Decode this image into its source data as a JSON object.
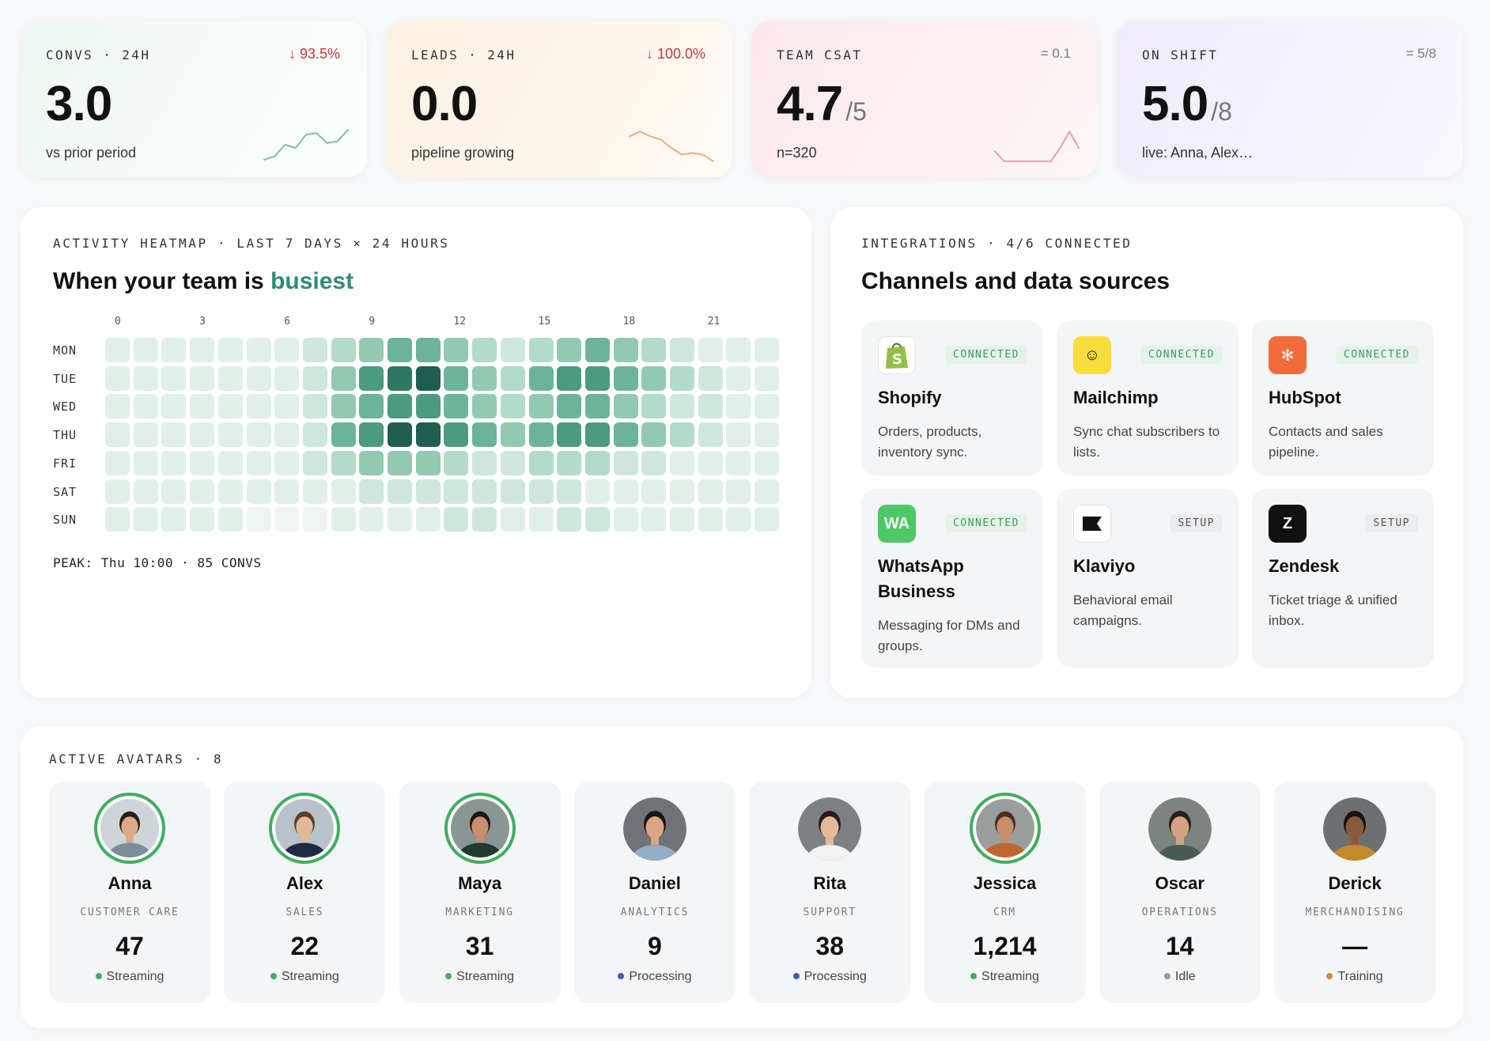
{
  "kpis": [
    {
      "label": "CONVS · 24H",
      "delta": "↓ 93.5%",
      "value": "3.0",
      "of": "",
      "sub": "vs prior period",
      "spark_color": "#7fbfa2",
      "spark": [
        0.1,
        0.2,
        0.55,
        0.45,
        0.85,
        0.9,
        0.6,
        0.65,
        1.0
      ]
    },
    {
      "label": "LEADS · 24H",
      "delta": "↓ 100.0%",
      "value": "0.0",
      "of": "",
      "sub": "pipeline growing",
      "spark_color": "#e6b07a",
      "spark": [
        0.8,
        0.95,
        0.8,
        0.7,
        0.45,
        0.25,
        0.3,
        0.25,
        0.05
      ]
    },
    {
      "label": "TEAM CSAT",
      "delta": "= 0.1",
      "value": "4.7",
      "of": "/5",
      "sub": "n=320",
      "spark_color": "#e8a0ad",
      "spark": [
        0.35,
        0.05,
        0.05,
        0.05,
        0.05,
        0.05,
        0.05,
        0.45,
        0.95,
        0.45
      ]
    },
    {
      "label": "ON SHIFT",
      "delta": "= 5/8",
      "value": "5.0",
      "of": "/8",
      "sub": "live: Anna, Alex…",
      "spark_color": "",
      "spark": []
    }
  ],
  "heatmap": {
    "eyebrow": "ACTIVITY HEATMAP · LAST 7 DAYS × 24 HOURS",
    "title_lead": "When your team is ",
    "title_accent": "busiest",
    "hour_labels": [
      "0",
      "3",
      "6",
      "9",
      "12",
      "15",
      "18",
      "21"
    ],
    "days": [
      "MON",
      "TUE",
      "WED",
      "THU",
      "FRI",
      "SAT",
      "SUN"
    ],
    "scale_colors": [
      "#eef5f2",
      "#e1efe9",
      "#cde7dc",
      "#b2dbc9",
      "#91c9b1",
      "#6bb49a",
      "#4b9b81",
      "#2f7765",
      "#1f5e50"
    ],
    "matrix": [
      [
        1,
        1,
        1,
        1,
        1,
        1,
        1,
        2,
        3,
        4,
        5,
        5,
        4,
        3,
        2,
        3,
        4,
        5,
        4,
        3,
        2,
        1,
        1,
        1
      ],
      [
        1,
        1,
        1,
        1,
        1,
        1,
        1,
        2,
        4,
        6,
        7,
        8,
        5,
        4,
        3,
        5,
        6,
        6,
        5,
        4,
        3,
        2,
        1,
        1
      ],
      [
        1,
        1,
        1,
        1,
        1,
        1,
        1,
        2,
        4,
        5,
        6,
        6,
        5,
        4,
        3,
        4,
        5,
        5,
        4,
        3,
        2,
        2,
        1,
        1
      ],
      [
        1,
        1,
        1,
        1,
        1,
        1,
        1,
        2,
        5,
        6,
        8,
        8,
        6,
        5,
        4,
        5,
        6,
        6,
        5,
        4,
        3,
        2,
        1,
        1
      ],
      [
        1,
        1,
        1,
        1,
        1,
        1,
        1,
        2,
        3,
        4,
        4,
        4,
        3,
        2,
        2,
        3,
        3,
        3,
        2,
        2,
        1,
        1,
        1,
        1
      ],
      [
        1,
        1,
        1,
        1,
        1,
        1,
        1,
        1,
        1,
        2,
        2,
        2,
        2,
        2,
        2,
        2,
        2,
        1,
        1,
        1,
        1,
        1,
        1,
        1
      ],
      [
        1,
        1,
        1,
        1,
        1,
        0,
        0,
        0,
        1,
        1,
        1,
        1,
        2,
        2,
        1,
        1,
        2,
        2,
        1,
        1,
        1,
        1,
        1,
        1
      ]
    ],
    "peak": "PEAK: Thu 10:00 · 85 CONVS"
  },
  "integrations": {
    "eyebrow": "INTEGRATIONS · 4/6 CONNECTED",
    "title": "Channels and data sources",
    "items": [
      {
        "name": "Shopify",
        "status": "CONNECTED",
        "state": "connected",
        "desc": "Orders, products, inventory sync.",
        "logo_text": "S",
        "logo_bg": "#ffffff",
        "logo_fg": "#5e9e3c",
        "icon": "shopify-bag-icon"
      },
      {
        "name": "Mailchimp",
        "status": "CONNECTED",
        "state": "connected",
        "desc": "Sync chat subscribers to lists.",
        "logo_text": "☺",
        "logo_bg": "#f7dc3e",
        "logo_fg": "#111111",
        "icon": "mailchimp-icon"
      },
      {
        "name": "HubSpot",
        "status": "CONNECTED",
        "state": "connected",
        "desc": "Contacts and sales pipeline.",
        "logo_text": "✻",
        "logo_bg": "#f26b3a",
        "logo_fg": "#ffffff",
        "icon": "hubspot-icon"
      },
      {
        "name": "WhatsApp Business",
        "status": "CONNECTED",
        "state": "connected",
        "desc": "Messaging for DMs and groups.",
        "logo_text": "WA",
        "logo_bg": "#4cc864",
        "logo_fg": "#ffffff",
        "icon": "whatsapp-icon"
      },
      {
        "name": "Klaviyo",
        "status": "SETUP",
        "state": "setup",
        "desc": "Behavioral email campaigns.",
        "logo_text": "",
        "logo_bg": "#ffffff",
        "logo_fg": "#111111",
        "icon": "klaviyo-flag-icon"
      },
      {
        "name": "Zendesk",
        "status": "SETUP",
        "state": "setup",
        "desc": "Ticket triage & unified inbox.",
        "logo_text": "Z",
        "logo_bg": "#111111",
        "logo_fg": "#ffffff",
        "icon": "zendesk-icon"
      }
    ]
  },
  "avatars": {
    "eyebrow": "ACTIVE AVATARS · 8",
    "people": [
      {
        "name": "Anna",
        "role": "CUSTOMER CARE",
        "count": "47",
        "status": "Streaming",
        "status_color": "#3fae5d",
        "ring": true,
        "skin": "#d9a98a",
        "hair": "#2b1d16",
        "shirt": "#7a8d9a",
        "bg": "#cdd5d9"
      },
      {
        "name": "Alex",
        "role": "SALES",
        "count": "22",
        "status": "Streaming",
        "status_color": "#3fae5d",
        "ring": true,
        "skin": "#e2b899",
        "hair": "#5a3e2b",
        "shirt": "#1d2b44",
        "bg": "#b8c2c8"
      },
      {
        "name": "Maya",
        "role": "MARKETING",
        "count": "31",
        "status": "Streaming",
        "status_color": "#3fae5d",
        "ring": true,
        "skin": "#c88f6c",
        "hair": "#1c1410",
        "shirt": "#1e3a33",
        "bg": "#8b9593"
      },
      {
        "name": "Daniel",
        "role": "ANALYTICS",
        "count": "9",
        "status": "Processing",
        "status_color": "#3b5bc9",
        "ring": false,
        "skin": "#d9a583",
        "hair": "#1a1412",
        "shirt": "#93aec7",
        "bg": "#6f7378"
      },
      {
        "name": "Rita",
        "role": "SUPPORT",
        "count": "38",
        "status": "Processing",
        "status_color": "#3b5bc9",
        "ring": false,
        "skin": "#e4b898",
        "hair": "#2a1c16",
        "shirt": "#f2f2f2",
        "bg": "#7d8184"
      },
      {
        "name": "Jessica",
        "role": "CRM",
        "count": "1,214",
        "status": "Streaming",
        "status_color": "#3fae5d",
        "ring": true,
        "skin": "#c98f6c",
        "hair": "#4a2d1e",
        "shirt": "#c0672e",
        "bg": "#9a9f9e"
      },
      {
        "name": "Oscar",
        "role": "OPERATIONS",
        "count": "14",
        "status": "Idle",
        "status_color": "#9a9a9a",
        "ring": false,
        "skin": "#d4a282",
        "hair": "#2a201a",
        "shirt": "#4a5a55",
        "bg": "#7c8482"
      },
      {
        "name": "Derick",
        "role": "MERCHANDISING",
        "count": "—",
        "status": "Training",
        "status_color": "#d08a2e",
        "ring": false,
        "skin": "#8a5a3c",
        "hair": "#1a120e",
        "shirt": "#c58a2c",
        "bg": "#6c7070"
      }
    ]
  }
}
